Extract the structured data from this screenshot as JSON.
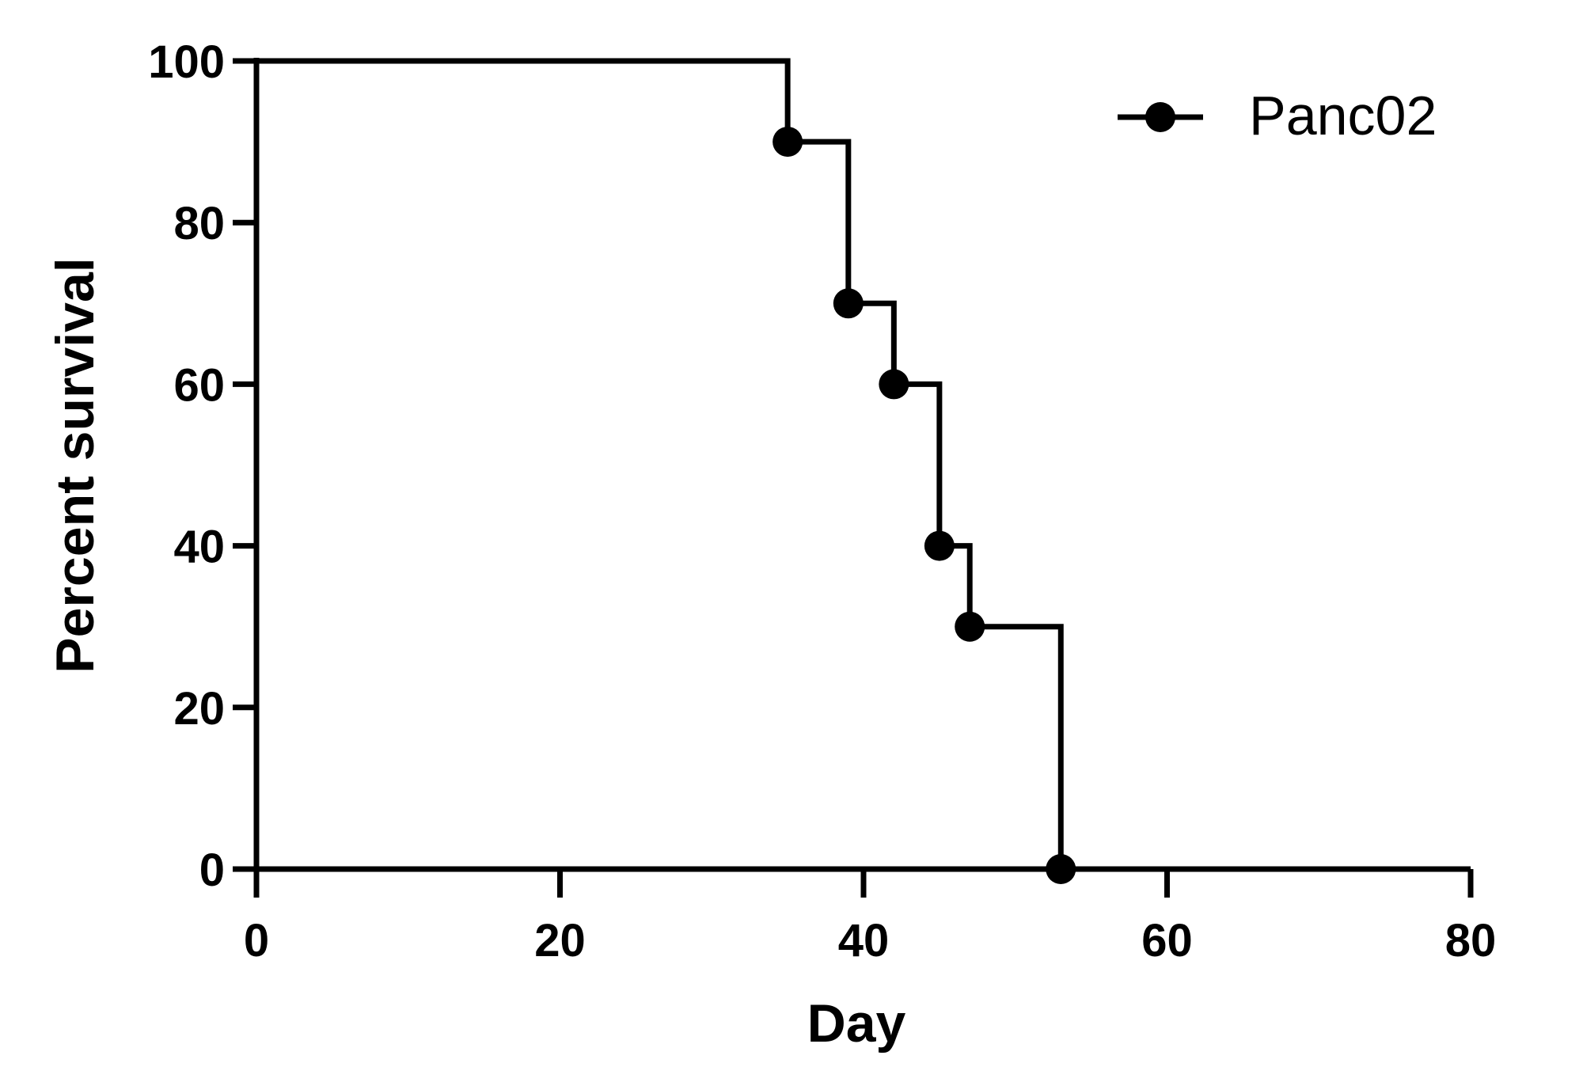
{
  "chart_data": {
    "type": "line",
    "subtype": "kaplan-meier-step",
    "title": "",
    "xlabel": "Day",
    "ylabel": "Percent survival",
    "xlim": [
      0,
      80
    ],
    "ylim": [
      0,
      100
    ],
    "xticks": [
      "0",
      "20",
      "40",
      "60",
      "80"
    ],
    "yticks": [
      "0",
      "20",
      "40",
      "60",
      "80",
      "100"
    ],
    "xtick_values": [
      0,
      20,
      40,
      60,
      80
    ],
    "ytick_values": [
      0,
      20,
      40,
      60,
      80,
      100
    ],
    "grid": false,
    "legend_position": "top-right",
    "series": [
      {
        "name": "Panc02",
        "color": "#000000",
        "marker": "circle",
        "step_points": [
          {
            "x": 0,
            "y": 100
          },
          {
            "x": 35,
            "y": 90
          },
          {
            "x": 39,
            "y": 70
          },
          {
            "x": 42,
            "y": 60
          },
          {
            "x": 45,
            "y": 40
          },
          {
            "x": 47,
            "y": 30
          },
          {
            "x": 53,
            "y": 0
          },
          {
            "x": 80,
            "y": 0
          }
        ],
        "event_markers": [
          {
            "x": 35,
            "y": 90
          },
          {
            "x": 39,
            "y": 70
          },
          {
            "x": 42,
            "y": 60
          },
          {
            "x": 45,
            "y": 40
          },
          {
            "x": 47,
            "y": 30
          },
          {
            "x": 53,
            "y": 0
          }
        ]
      }
    ]
  }
}
